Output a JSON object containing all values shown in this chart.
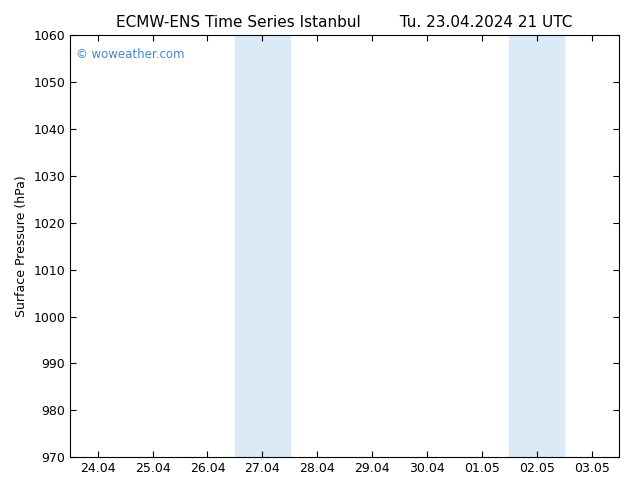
{
  "title_left": "ECMW-ENS Time Series Istanbul",
  "title_right": "Tu. 23.04.2024 21 UTC",
  "ylabel": "Surface Pressure (hPa)",
  "ylim": [
    970,
    1060
  ],
  "yticks": [
    970,
    980,
    990,
    1000,
    1010,
    1020,
    1030,
    1040,
    1050,
    1060
  ],
  "xtick_labels": [
    "24.04",
    "25.04",
    "26.04",
    "27.04",
    "28.04",
    "29.04",
    "30.04",
    "01.05",
    "02.05",
    "03.05"
  ],
  "xtick_positions": [
    0,
    1,
    2,
    3,
    4,
    5,
    6,
    7,
    8,
    9
  ],
  "xlim": [
    -0.5,
    9.5
  ],
  "shaded_regions": [
    {
      "xmin": 2.5,
      "xmax": 3.5
    },
    {
      "xmin": 7.5,
      "xmax": 8.5
    }
  ],
  "shaded_color": "#daeaf7",
  "background_color": "#ffffff",
  "watermark_text": "© woweather.com",
  "watermark_color": "#4488cc",
  "title_fontsize": 11,
  "tick_fontsize": 9,
  "ylabel_fontsize": 9,
  "border_color": "#000000"
}
